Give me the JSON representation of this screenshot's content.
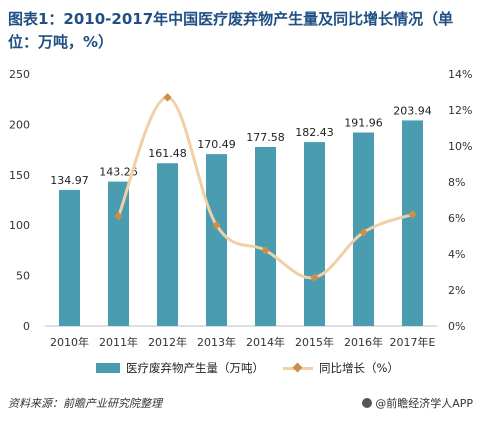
{
  "title": "图表1：2010-2017年中国医疗废弃物产生量及同比增长情况（单位：万吨，%）",
  "colors": {
    "bar": "#4a9db0",
    "line": "#f2cfa6",
    "marker": "#c8904a",
    "title": "#1f4f84",
    "axis_text": "#333333"
  },
  "chart_data": {
    "type": "bar",
    "categories": [
      "2010年",
      "2011年",
      "2012年",
      "2013年",
      "2014年",
      "2015年",
      "2016年",
      "2017年E"
    ],
    "series": [
      {
        "name": "医疗废弃物产生量（万吨）",
        "type": "bar",
        "axis": "left",
        "values": [
          134.97,
          143.26,
          161.48,
          170.49,
          177.58,
          182.43,
          191.96,
          203.94
        ],
        "labels": [
          "134.97",
          "143.26",
          "161.48",
          "170.49",
          "177.58",
          "182.43",
          "191.96",
          "203.94"
        ]
      },
      {
        "name": "同比增长（%）",
        "type": "line",
        "axis": "right",
        "values": [
          null,
          6.1,
          12.7,
          5.6,
          4.2,
          2.7,
          5.2,
          6.2
        ]
      }
    ],
    "y_left": {
      "min": 0,
      "max": 250,
      "ticks": [
        "0",
        "50",
        "100",
        "150",
        "200",
        "250"
      ]
    },
    "y_right": {
      "min": 0,
      "max": 14,
      "ticks": [
        "0%",
        "2%",
        "4%",
        "6%",
        "8%",
        "10%",
        "12%",
        "14%"
      ]
    },
    "grid": false,
    "legend_position": "bottom"
  },
  "legend": {
    "bar_label": "医疗废弃物产生量（万吨）",
    "line_label": "同比增长（%）"
  },
  "footer": {
    "source": "资料来源：前瞻产业研究院整理",
    "brand": "@前瞻经济学人APP"
  }
}
